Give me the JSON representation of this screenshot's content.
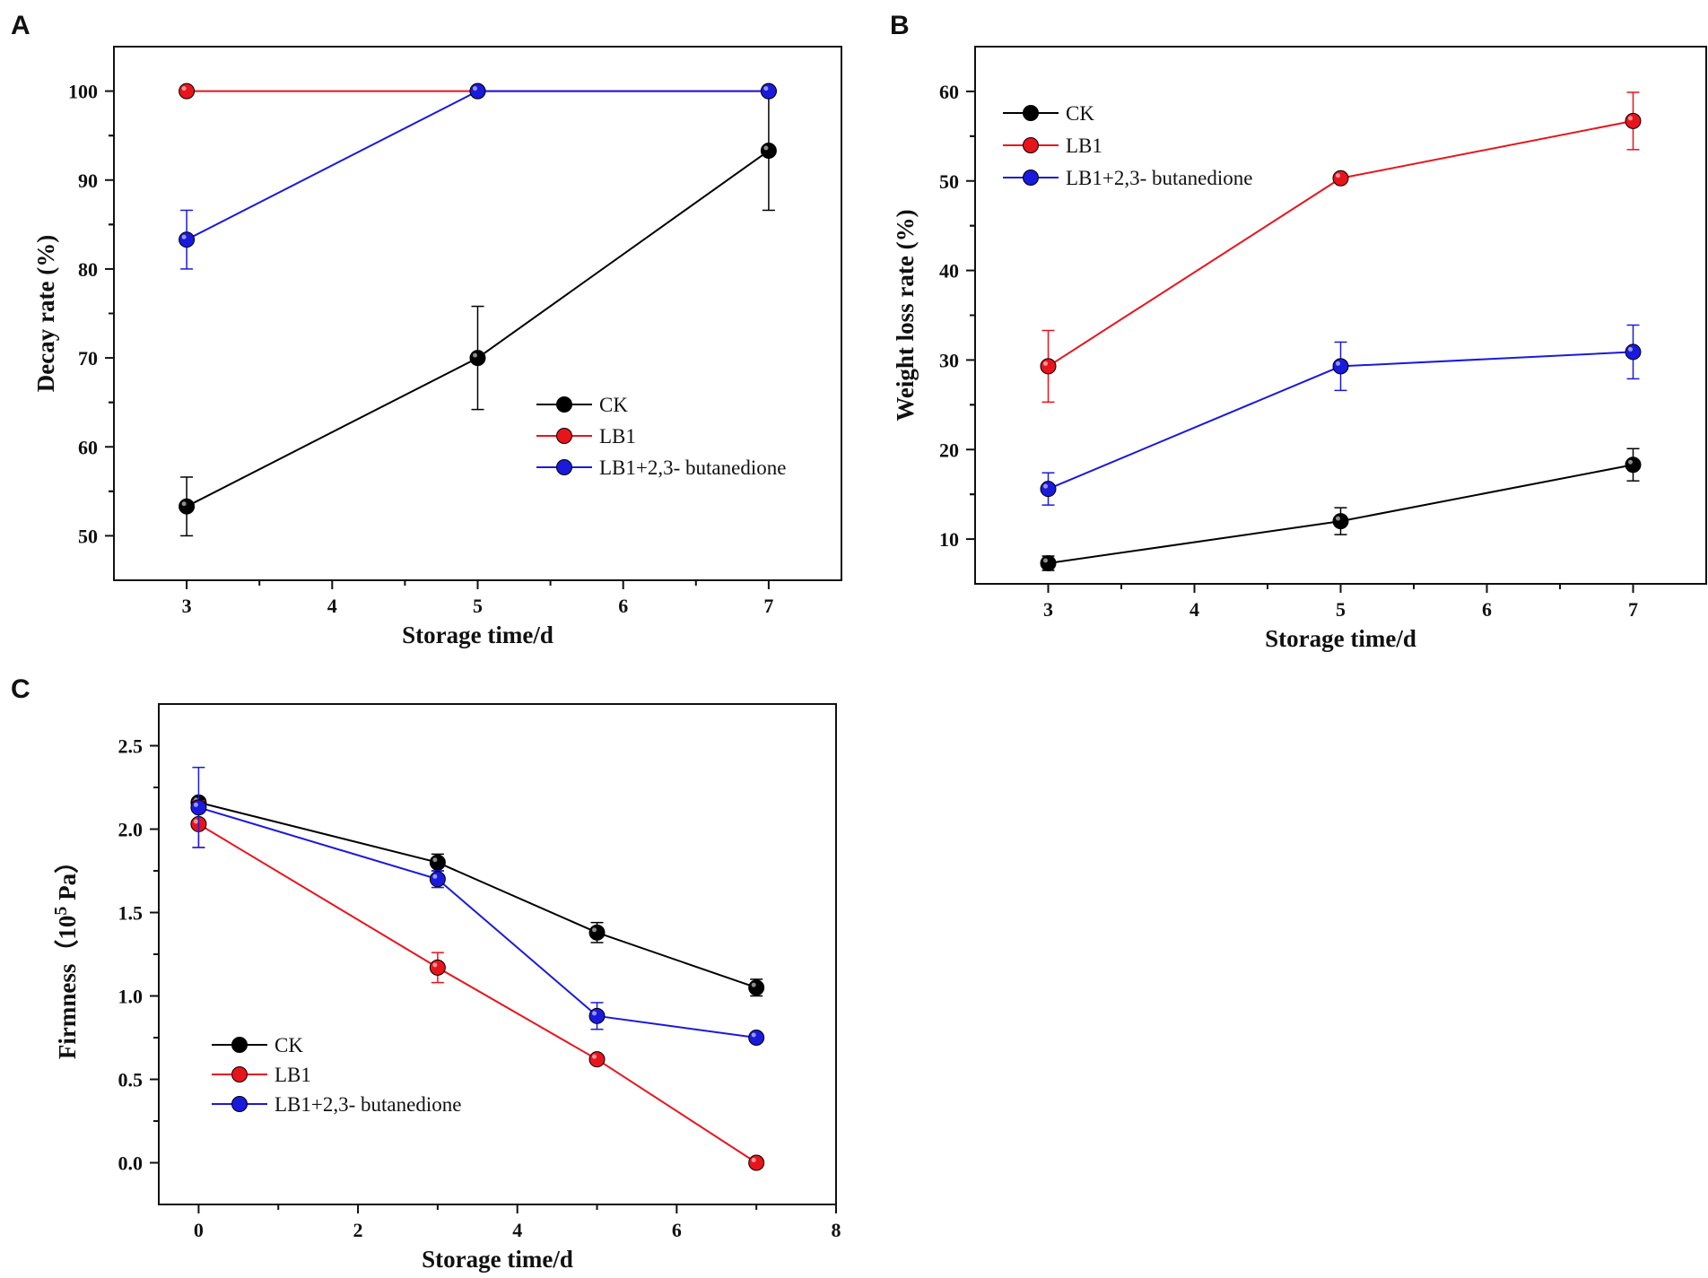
{
  "colors": {
    "CK": "#000000",
    "LB1": "#e8141c",
    "LB1+2,3- butanedione": "#1a1adc"
  },
  "chart_data": [
    {
      "panel": "A",
      "type": "line",
      "xlabel": "Storage time/d",
      "ylabel": "Decay rate (%)",
      "xlim": [
        2.5,
        7.5
      ],
      "ylim": [
        45,
        105
      ],
      "xticks": [
        3,
        4,
        5,
        6,
        7
      ],
      "yticks": [
        50,
        60,
        70,
        80,
        90,
        100
      ],
      "legend_position": "center-right",
      "x": [
        3,
        5,
        7
      ],
      "series": [
        {
          "name": "CK",
          "color": "#000000",
          "values": [
            53.3,
            70.0,
            93.3
          ],
          "errors": [
            3.3,
            5.8,
            6.7
          ]
        },
        {
          "name": "LB1",
          "color": "#e8141c",
          "values": [
            100,
            100,
            100
          ],
          "errors": [
            0,
            0,
            0
          ]
        },
        {
          "name": "LB1+2,3- butanedione",
          "color": "#1a1adc",
          "values": [
            83.3,
            100,
            100
          ],
          "errors": [
            3.3,
            0,
            0
          ]
        }
      ]
    },
    {
      "panel": "B",
      "type": "line",
      "xlabel": "Storage time/d",
      "ylabel": "Weight loss rate (%)",
      "xlim": [
        2.5,
        7.5
      ],
      "ylim": [
        5,
        65
      ],
      "xticks": [
        3,
        4,
        5,
        6,
        7
      ],
      "yticks": [
        10,
        20,
        30,
        40,
        50,
        60
      ],
      "legend_position": "top-left",
      "x": [
        3,
        5,
        7
      ],
      "series": [
        {
          "name": "CK",
          "color": "#000000",
          "values": [
            7.3,
            12.0,
            18.3
          ],
          "errors": [
            0.8,
            1.5,
            1.8
          ]
        },
        {
          "name": "LB1",
          "color": "#e8141c",
          "values": [
            29.3,
            50.3,
            56.7
          ],
          "errors": [
            4.0,
            0,
            3.2
          ]
        },
        {
          "name": "LB1+2,3- butanedione",
          "color": "#1a1adc",
          "values": [
            15.6,
            29.3,
            30.9
          ],
          "errors": [
            1.8,
            2.7,
            3.0
          ]
        }
      ]
    },
    {
      "panel": "C",
      "type": "line",
      "xlabel": "Storage time/d",
      "ylabel_prefix": "Firmness（10",
      "ylabel_sup": "5",
      "ylabel_suffix": " Pa）",
      "xlim": [
        -0.5,
        8
      ],
      "ylim": [
        -0.25,
        2.75
      ],
      "xticks": [
        0,
        2,
        4,
        6,
        8
      ],
      "yticks": [
        0.0,
        0.5,
        1.0,
        1.5,
        2.0,
        2.5
      ],
      "ytick_labels": [
        "0.0",
        "0.5",
        "1.0",
        "1.5",
        "2.0",
        "2.5"
      ],
      "legend_position": "bottom-left",
      "x": [
        0,
        3,
        5,
        7
      ],
      "series": [
        {
          "name": "CK",
          "color": "#000000",
          "values": [
            2.16,
            1.8,
            1.38,
            1.05
          ],
          "errors": [
            0.0,
            0.05,
            0.06,
            0.05
          ]
        },
        {
          "name": "LB1",
          "color": "#e8141c",
          "values": [
            2.03,
            1.17,
            0.62,
            0.0
          ],
          "errors": [
            0.14,
            0.09,
            0.0,
            0.0
          ]
        },
        {
          "name": "LB1+2,3- butanedione",
          "color": "#1a1adc",
          "values": [
            2.13,
            1.7,
            0.88,
            0.75
          ],
          "errors": [
            0.24,
            0.05,
            0.08,
            0.0
          ]
        }
      ]
    }
  ]
}
